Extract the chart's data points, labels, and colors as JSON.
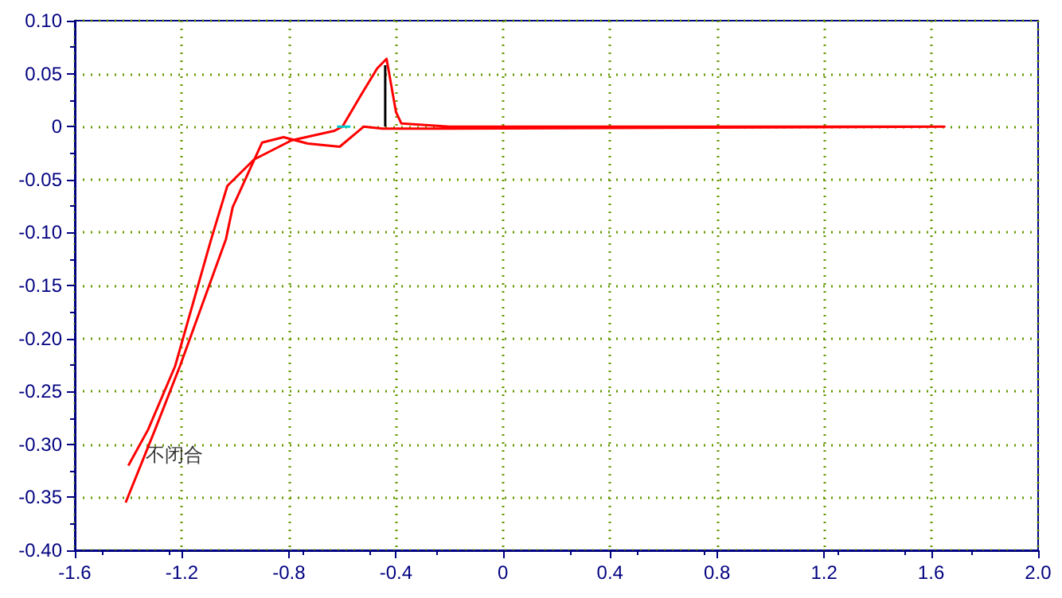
{
  "chart_data": {
    "type": "line",
    "xlim": [
      -1.6,
      2.0
    ],
    "ylim": [
      -0.4,
      0.1
    ],
    "xticks": [
      {
        "value": -1.6,
        "label": "-1.6"
      },
      {
        "value": -1.2,
        "label": "-1.2"
      },
      {
        "value": -0.8,
        "label": "-0.8"
      },
      {
        "value": -0.4,
        "label": "-0.4"
      },
      0,
      {
        "value": 0.4,
        "label": "0.4"
      },
      {
        "value": 0.8,
        "label": "0.8"
      },
      {
        "value": 1.2,
        "label": "1.2"
      },
      {
        "value": 1.6,
        "label": "1.6"
      },
      {
        "value": 2.0,
        "label": "2.0"
      }
    ],
    "yticks": [
      {
        "value": -0.4,
        "label": "-0.40"
      },
      {
        "value": -0.35,
        "label": "-0.35"
      },
      {
        "value": -0.3,
        "label": "-0.30"
      },
      {
        "value": -0.25,
        "label": "-0.25"
      },
      {
        "value": -0.2,
        "label": "-0.20"
      },
      {
        "value": -0.15,
        "label": "-0.15"
      },
      {
        "value": -0.1,
        "label": "-0.10"
      },
      {
        "value": -0.05,
        "label": "-0.05"
      },
      0,
      {
        "value": 0.05,
        "label": "0.05"
      },
      {
        "value": 0.1,
        "label": "0.10"
      }
    ],
    "grid": true,
    "marker": "none",
    "line_style": "solid",
    "annotations": [
      {
        "text": "不闭合",
        "x": -1.37,
        "y": -0.31
      }
    ],
    "series": [
      {
        "color": "#ff0000",
        "x": [
          -1.4,
          -1.326,
          -1.225,
          -1.09,
          -1.03,
          -0.93,
          -0.79,
          -0.63,
          -0.6,
          -0.53,
          -0.47,
          -0.435,
          -0.4,
          -0.38,
          -0.2,
          1.65,
          -0.2,
          -0.45,
          -0.52,
          -0.61,
          -0.73,
          -0.82,
          -0.9,
          -1.01,
          -1.035,
          -1.207,
          -1.3,
          -1.41
        ],
        "values": [
          -0.32,
          -0.286,
          -0.226,
          -0.106,
          -0.056,
          -0.031,
          -0.013,
          -0.004,
          0,
          0.03,
          0.055,
          0.064,
          0.014,
          0.003,
          0,
          0,
          -0.002,
          -0.002,
          0,
          -0.019,
          -0.016,
          -0.01,
          -0.015,
          -0.076,
          -0.106,
          -0.226,
          -0.286,
          -0.355
        ]
      },
      {
        "color": "#000000",
        "x": [
          -0.44,
          -0.44
        ],
        "values": [
          0,
          0.058
        ]
      },
      {
        "color": "#00cccc",
        "x": [
          -0.62,
          -0.57
        ],
        "values": [
          0,
          0
        ]
      }
    ]
  }
}
